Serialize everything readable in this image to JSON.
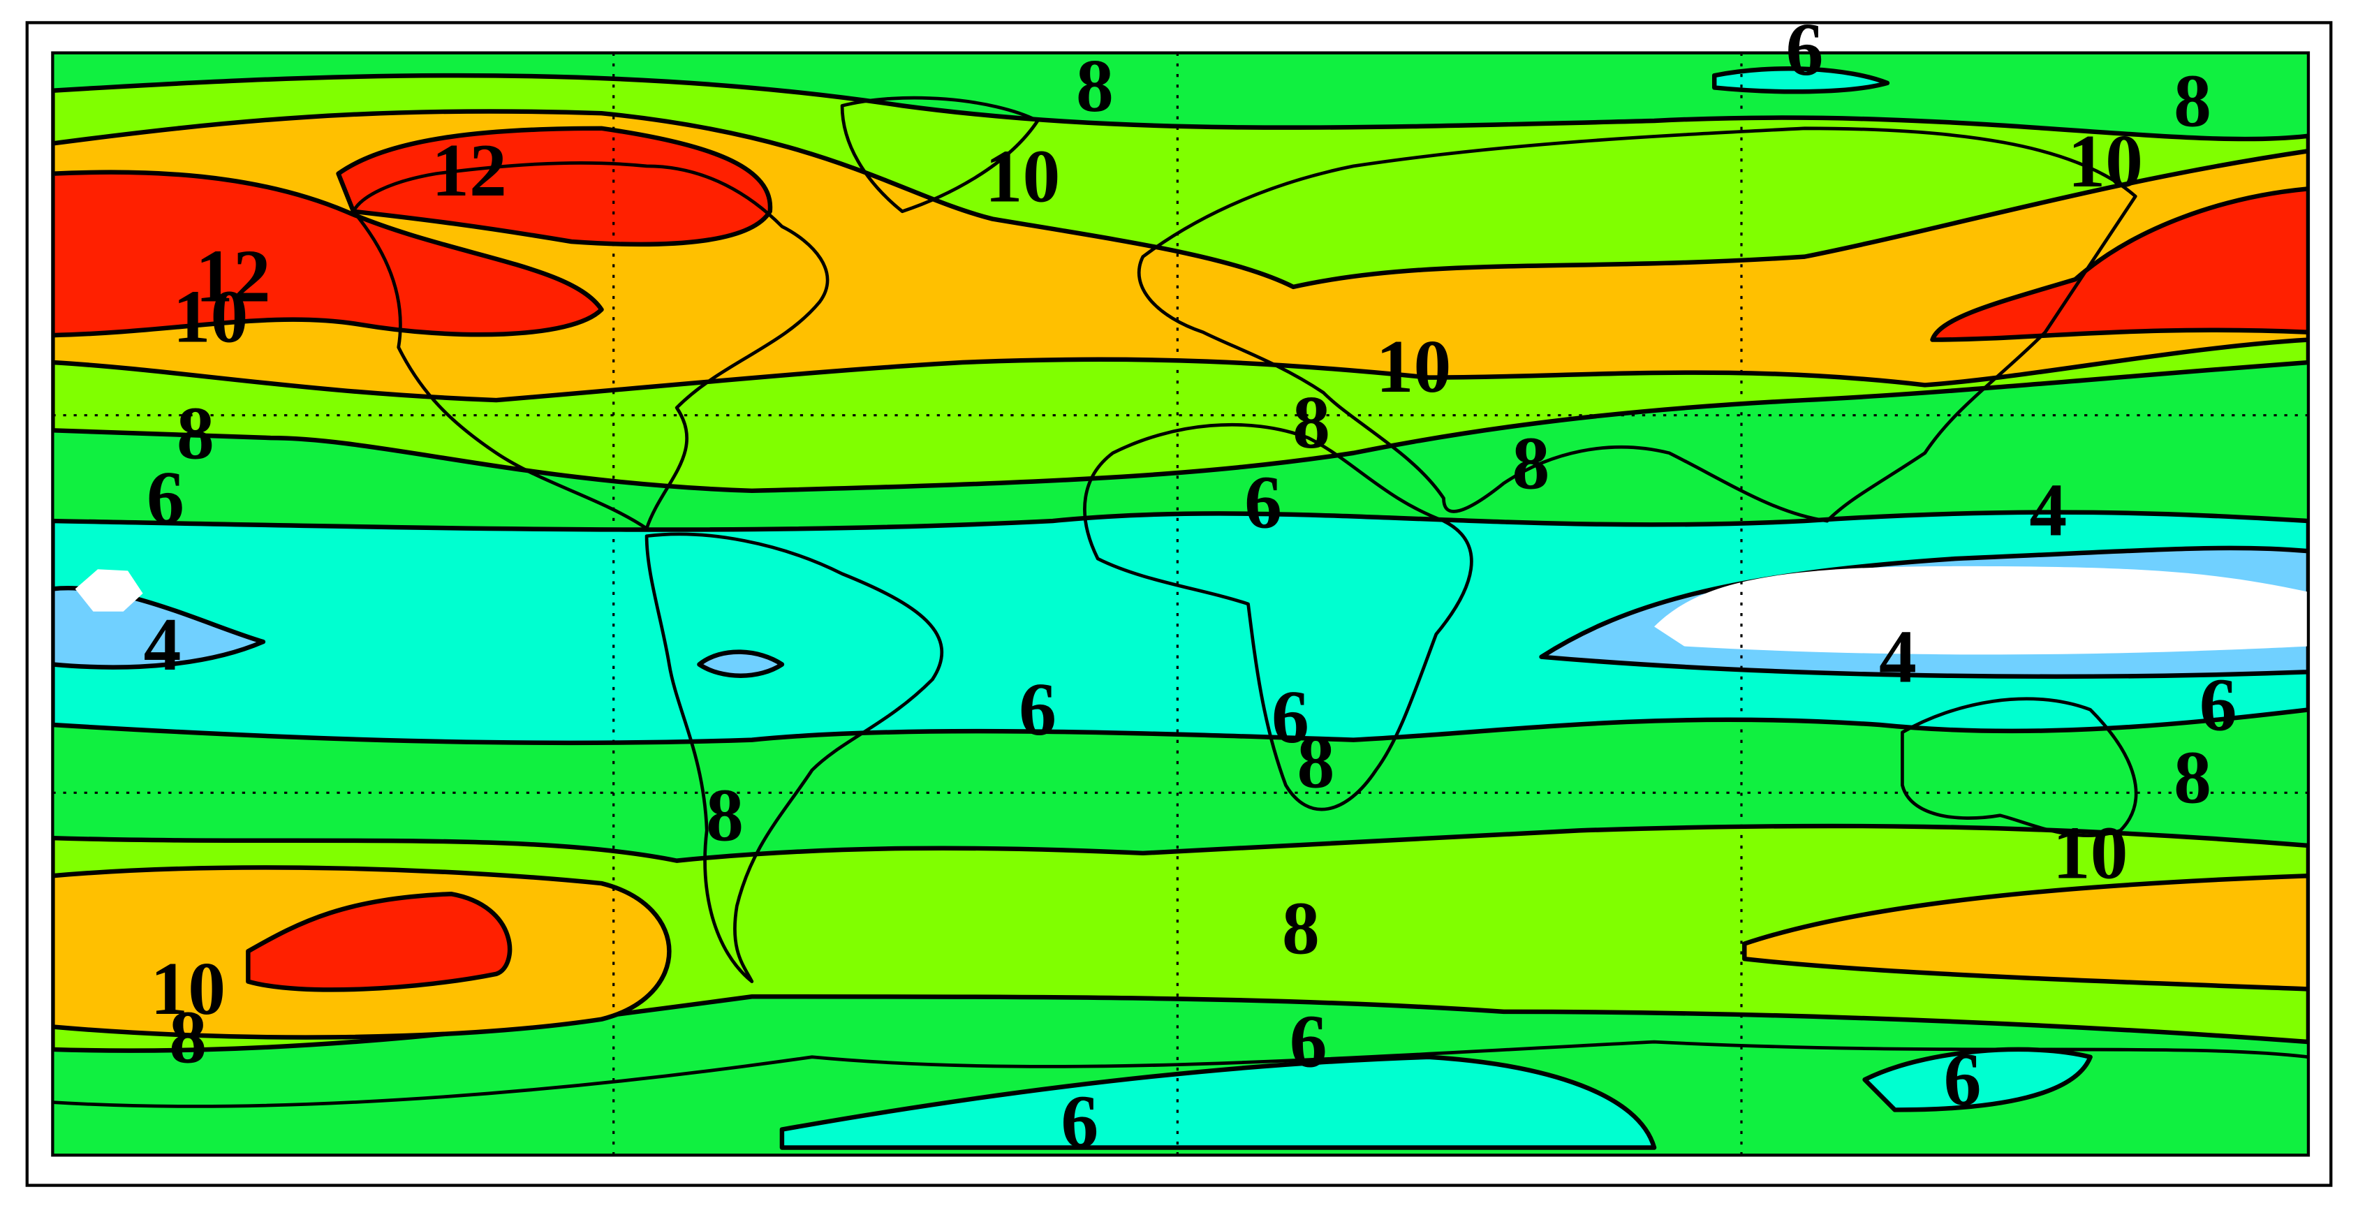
{
  "contour_labels": [
    6,
    8,
    8,
    10,
    10,
    12,
    12,
    10,
    10,
    8,
    8,
    8,
    6,
    6,
    4,
    4,
    4,
    6,
    6,
    6,
    8,
    8,
    8,
    10,
    8,
    10,
    8,
    6,
    6,
    6
  ]
}
